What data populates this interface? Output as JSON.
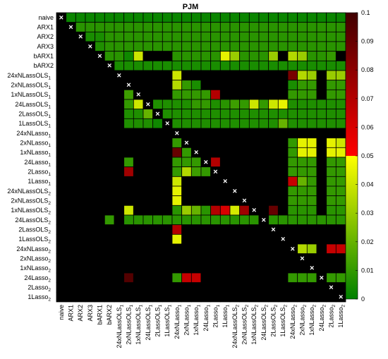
{
  "chart_data": {
    "type": "heatmap",
    "title": "PJM",
    "xlabel": "",
    "ylabel": "",
    "models": [
      {
        "name": "naive",
        "sub": ""
      },
      {
        "name": "ARX1",
        "sub": ""
      },
      {
        "name": "ARX2",
        "sub": ""
      },
      {
        "name": "ARX3",
        "sub": ""
      },
      {
        "name": "bARX1",
        "sub": ""
      },
      {
        "name": "bARX2",
        "sub": ""
      },
      {
        "name": "24xNLassOLS",
        "sub": "1"
      },
      {
        "name": "2xNLassOLS",
        "sub": "1"
      },
      {
        "name": "1xNLassOLS",
        "sub": "1"
      },
      {
        "name": "24LassOLS",
        "sub": "1"
      },
      {
        "name": "2LassOLS",
        "sub": "1"
      },
      {
        "name": "1LassOLS",
        "sub": "1"
      },
      {
        "name": "24xNLasso",
        "sub": "1"
      },
      {
        "name": "2xNLasso",
        "sub": "1"
      },
      {
        "name": "1xNLasso",
        "sub": "1"
      },
      {
        "name": "24Lasso",
        "sub": "1"
      },
      {
        "name": "2Lasso",
        "sub": "1"
      },
      {
        "name": "1Lasso",
        "sub": "1"
      },
      {
        "name": "24xNLassOLS",
        "sub": "2"
      },
      {
        "name": "2xNLassOLS",
        "sub": "2"
      },
      {
        "name": "1xNLassOLS",
        "sub": "2"
      },
      {
        "name": "24LassOLS",
        "sub": "2"
      },
      {
        "name": "2LassOLS",
        "sub": "2"
      },
      {
        "name": "1LassOLS",
        "sub": "2"
      },
      {
        "name": "24xNLasso",
        "sub": "2"
      },
      {
        "name": "2xNLasso",
        "sub": "2"
      },
      {
        "name": "1xNLasso",
        "sub": "2"
      },
      {
        "name": "24Lasso",
        "sub": "2"
      },
      {
        "name": "2Lasso",
        "sub": "2"
      },
      {
        "name": "1Lasso",
        "sub": "2"
      }
    ],
    "diagonal_marker": "×",
    "color_scale": {
      "min": 0,
      "max": 0.1,
      "ticks": [
        "0",
        "0.01",
        "0.02",
        "0.03",
        "0.04",
        "0.05",
        "0.06",
        "0.07",
        "0.08",
        "0.09",
        "0.1"
      ],
      "colors": [
        "#008000",
        "#ffff00",
        "#ff0000",
        "#000000"
      ],
      "above_range_color": "#000000"
    },
    "grid": true,
    "values": [
      [
        null,
        0.002,
        0.002,
        0.002,
        0.002,
        0.002,
        0.002,
        0.002,
        0.002,
        0.002,
        0.002,
        0.002,
        0.002,
        0.002,
        0.002,
        0.002,
        0.002,
        0.002,
        0.002,
        0.002,
        0.002,
        0.002,
        0.002,
        0.002,
        0.002,
        0.002,
        0.002,
        0.002,
        0.002,
        0.002
      ],
      [
        1,
        null,
        0.008,
        0.008,
        0.008,
        0.008,
        0.008,
        0.008,
        0.008,
        0.008,
        0.008,
        0.008,
        0.008,
        0.008,
        0.008,
        0.008,
        0.008,
        0.008,
        0.008,
        0.008,
        0.008,
        0.008,
        0.008,
        0.008,
        0.008,
        0.008,
        0.008,
        0.008,
        0.008,
        0.008
      ],
      [
        1,
        1,
        null,
        0.005,
        0.005,
        0.008,
        0.008,
        0.008,
        0.008,
        0.008,
        0.008,
        0.008,
        0.008,
        0.008,
        0.008,
        0.008,
        0.008,
        0.008,
        0.008,
        0.008,
        0.008,
        0.008,
        0.008,
        0.008,
        0.008,
        0.008,
        0.008,
        0.008,
        0.008,
        0.008
      ],
      [
        1,
        1,
        1,
        null,
        0.006,
        0.008,
        0.008,
        0.008,
        0.008,
        0.008,
        0.008,
        0.008,
        0.008,
        0.008,
        0.008,
        0.008,
        0.008,
        0.008,
        0.008,
        0.008,
        0.008,
        0.008,
        0.008,
        0.008,
        0.008,
        0.008,
        0.008,
        0.008,
        0.008,
        0.008
      ],
      [
        1,
        1,
        1,
        1,
        null,
        0.008,
        0.008,
        0.003,
        0.04,
        1,
        1,
        1,
        0.008,
        0.008,
        0.008,
        0.008,
        0.008,
        0.045,
        0.03,
        0.008,
        0.008,
        0.008,
        0.03,
        1,
        0.035,
        0.03,
        0.008,
        0.008,
        0.01,
        1
      ],
      [
        1,
        1,
        1,
        1,
        1,
        null,
        0.005,
        0.005,
        0.005,
        0.005,
        0.005,
        0.005,
        0.005,
        0.005,
        0.005,
        0.005,
        0.005,
        0.005,
        0.005,
        0.005,
        0.005,
        0.005,
        0.005,
        0.005,
        0.005,
        0.005,
        0.005,
        0.005,
        0.005,
        0.005
      ],
      [
        1,
        1,
        1,
        1,
        1,
        1,
        null,
        1,
        1,
        1,
        1,
        1,
        0.04,
        1,
        1,
        1,
        1,
        1,
        1,
        1,
        1,
        1,
        1,
        1,
        0.085,
        0.035,
        0.03,
        1,
        0.03,
        0.03
      ],
      [
        1,
        1,
        1,
        1,
        1,
        1,
        1,
        null,
        1,
        1,
        1,
        1,
        0.035,
        0.01,
        0.005,
        1,
        1,
        1,
        1,
        1,
        1,
        1,
        1,
        1,
        0.005,
        0.01,
        0.01,
        1,
        0.01,
        0.01
      ],
      [
        1,
        1,
        1,
        1,
        1,
        1,
        1,
        0.012,
        null,
        1,
        1,
        1,
        0.01,
        0.01,
        0.01,
        0.01,
        0.07,
        1,
        1,
        1,
        1,
        1,
        1,
        1,
        0.01,
        0.01,
        0.01,
        1,
        0.01,
        0.01
      ],
      [
        1,
        1,
        1,
        1,
        1,
        1,
        1,
        0.01,
        0.04,
        null,
        0.006,
        0.006,
        0.006,
        0.006,
        0.01,
        0.01,
        0.006,
        0.008,
        0.012,
        0.01,
        0.04,
        0.01,
        0.04,
        0.045,
        0.006,
        0.006,
        0.006,
        0.006,
        0.006,
        0.006
      ],
      [
        1,
        1,
        1,
        1,
        1,
        1,
        1,
        0.006,
        0.006,
        0.02,
        null,
        0.006,
        0.006,
        0.006,
        0.006,
        0.006,
        0.006,
        0.006,
        0.006,
        0.006,
        0.006,
        0.006,
        0.006,
        0.006,
        0.006,
        0.006,
        0.006,
        0.006,
        0.006,
        0.006
      ],
      [
        1,
        1,
        1,
        1,
        1,
        1,
        1,
        0.006,
        0.006,
        0.006,
        0.003,
        null,
        0.006,
        0.006,
        0.006,
        0.006,
        0.006,
        0.006,
        0.006,
        0.006,
        0.006,
        0.006,
        0.006,
        0.02,
        0.006,
        0.006,
        0.006,
        0.006,
        0.006,
        0.006
      ],
      [
        1,
        1,
        1,
        1,
        1,
        1,
        1,
        1,
        1,
        1,
        1,
        1,
        null,
        1,
        1,
        1,
        1,
        1,
        1,
        1,
        1,
        1,
        1,
        1,
        1,
        1,
        1,
        1,
        1,
        1
      ],
      [
        1,
        1,
        1,
        1,
        1,
        1,
        1,
        1,
        1,
        1,
        1,
        1,
        0.01,
        null,
        1,
        1,
        1,
        1,
        1,
        1,
        1,
        1,
        1,
        1,
        0.01,
        0.045,
        0.045,
        1,
        0.045,
        0.04
      ],
      [
        1,
        1,
        1,
        1,
        1,
        1,
        1,
        1,
        1,
        1,
        1,
        1,
        0.09,
        0.01,
        null,
        1,
        1,
        1,
        1,
        1,
        1,
        1,
        1,
        1,
        0.01,
        0.045,
        0.045,
        1,
        0.045,
        0.045
      ],
      [
        1,
        1,
        1,
        1,
        1,
        1,
        1,
        0.01,
        1,
        1,
        1,
        1,
        0.01,
        0.01,
        0.01,
        null,
        0.07,
        1,
        1,
        1,
        1,
        1,
        1,
        1,
        0.01,
        0.01,
        0.01,
        1,
        0.01,
        0.01
      ],
      [
        1,
        1,
        1,
        1,
        1,
        1,
        1,
        0.075,
        1,
        1,
        1,
        1,
        0.01,
        0.035,
        0.012,
        0.01,
        null,
        1,
        1,
        1,
        1,
        1,
        1,
        1,
        0.01,
        0.01,
        0.01,
        1,
        0.01,
        0.01
      ],
      [
        1,
        1,
        1,
        1,
        1,
        1,
        1,
        1,
        1,
        1,
        1,
        1,
        0.04,
        1,
        1,
        1,
        1,
        null,
        1,
        1,
        1,
        1,
        1,
        1,
        0.065,
        0.02,
        0.01,
        1,
        0.01,
        0.01
      ],
      [
        1,
        1,
        1,
        1,
        1,
        1,
        1,
        1,
        1,
        1,
        1,
        1,
        0.045,
        1,
        1,
        1,
        1,
        1,
        null,
        1,
        1,
        1,
        1,
        1,
        0.01,
        0.01,
        0.01,
        1,
        0.01,
        0.01
      ],
      [
        1,
        1,
        1,
        1,
        1,
        1,
        1,
        1,
        1,
        1,
        1,
        1,
        0.045,
        1,
        1,
        1,
        1,
        1,
        1,
        null,
        1,
        1,
        1,
        1,
        0.01,
        0.01,
        0.01,
        1,
        0.01,
        0.01
      ],
      [
        1,
        1,
        1,
        1,
        1,
        1,
        1,
        0.04,
        1,
        1,
        1,
        1,
        0.008,
        0.03,
        0.02,
        0.008,
        0.07,
        0.06,
        0.042,
        0.075,
        null,
        1,
        0.09,
        1,
        0.008,
        0.008,
        0.008,
        1,
        0.008,
        0.008
      ],
      [
        1,
        1,
        1,
        1,
        1,
        0.01,
        1,
        0.008,
        0.008,
        0.008,
        0.008,
        0.008,
        0.008,
        0.008,
        0.008,
        0.008,
        0.008,
        0.008,
        0.008,
        0.008,
        0.008,
        null,
        0.008,
        0.008,
        0.008,
        0.008,
        0.008,
        0.008,
        0.008,
        0.008
      ],
      [
        1,
        1,
        1,
        1,
        1,
        1,
        1,
        1,
        1,
        1,
        1,
        1,
        0.07,
        1,
        1,
        1,
        1,
        1,
        1,
        1,
        1,
        1,
        null,
        1,
        1,
        1,
        1,
        1,
        1,
        1
      ],
      [
        1,
        1,
        1,
        1,
        1,
        1,
        1,
        1,
        1,
        1,
        1,
        1,
        0.045,
        1,
        1,
        1,
        1,
        1,
        1,
        1,
        1,
        1,
        1,
        null,
        1,
        1,
        1,
        1,
        1,
        1
      ],
      [
        1,
        1,
        1,
        1,
        1,
        1,
        1,
        1,
        1,
        1,
        1,
        1,
        1,
        1,
        1,
        1,
        1,
        1,
        1,
        1,
        1,
        1,
        1,
        1,
        null,
        0.035,
        0.03,
        1,
        0.065,
        0.065
      ],
      [
        1,
        1,
        1,
        1,
        1,
        1,
        1,
        1,
        1,
        1,
        1,
        1,
        1,
        1,
        1,
        1,
        1,
        1,
        1,
        1,
        1,
        1,
        1,
        1,
        1,
        null,
        1,
        1,
        1,
        1
      ],
      [
        1,
        1,
        1,
        1,
        1,
        1,
        1,
        1,
        1,
        1,
        1,
        1,
        1,
        1,
        1,
        1,
        1,
        1,
        1,
        1,
        1,
        1,
        1,
        1,
        1,
        1,
        null,
        1,
        1,
        1
      ],
      [
        1,
        1,
        1,
        1,
        1,
        1,
        1,
        0.095,
        1,
        1,
        1,
        1,
        0.01,
        0.065,
        0.065,
        1,
        1,
        1,
        1,
        1,
        1,
        1,
        1,
        1,
        0.01,
        0.01,
        0.01,
        null,
        0.01,
        0.01
      ],
      [
        1,
        1,
        1,
        1,
        1,
        1,
        1,
        1,
        1,
        1,
        1,
        1,
        1,
        1,
        1,
        1,
        1,
        1,
        1,
        1,
        1,
        1,
        1,
        1,
        1,
        1,
        1,
        1,
        null,
        1
      ],
      [
        1,
        1,
        1,
        1,
        1,
        1,
        1,
        1,
        1,
        1,
        1,
        1,
        1,
        1,
        1,
        1,
        1,
        1,
        1,
        1,
        1,
        1,
        1,
        1,
        1,
        1,
        1,
        1,
        1,
        null
      ]
    ]
  }
}
